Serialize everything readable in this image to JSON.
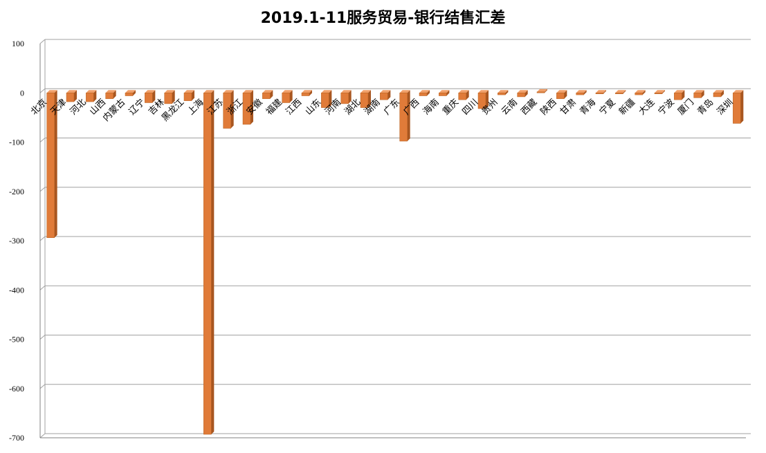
{
  "chart_data": {
    "type": "bar",
    "title": "2019.1-11服务贸易-银行结售汇差",
    "xlabel": "",
    "ylabel": "",
    "ylim": [
      -700,
      100
    ],
    "yticks": [
      100,
      0,
      -100,
      -200,
      -300,
      -400,
      -500,
      -600,
      -700
    ],
    "grid": true,
    "legend": "none",
    "bar_color": "#E07B39",
    "categories": [
      "北京",
      "天津",
      "河北",
      "山西",
      "内蒙古",
      "辽宁",
      "吉林",
      "黑龙江",
      "上海",
      "江苏",
      "浙江",
      "安徽",
      "福建",
      "江西",
      "山东",
      "河南",
      "湖北",
      "湖南",
      "广东",
      "广西",
      "海南",
      "重庆",
      "四川",
      "贵州",
      "云南",
      "西藏",
      "陕西",
      "甘肃",
      "青海",
      "宁夏",
      "新疆",
      "大连",
      "宁波",
      "厦门",
      "青岛",
      "深圳"
    ],
    "values": [
      -294,
      -18,
      -18,
      -12,
      -6,
      -20,
      -22,
      -16,
      -693,
      -72,
      -64,
      -12,
      -20,
      -6,
      -30,
      -22,
      -30,
      -14,
      -98,
      -6,
      -6,
      -14,
      -32,
      -4,
      -8,
      2,
      -12,
      -4,
      -2,
      -2,
      -4,
      -2,
      -14,
      -10,
      -8,
      -62
    ]
  }
}
